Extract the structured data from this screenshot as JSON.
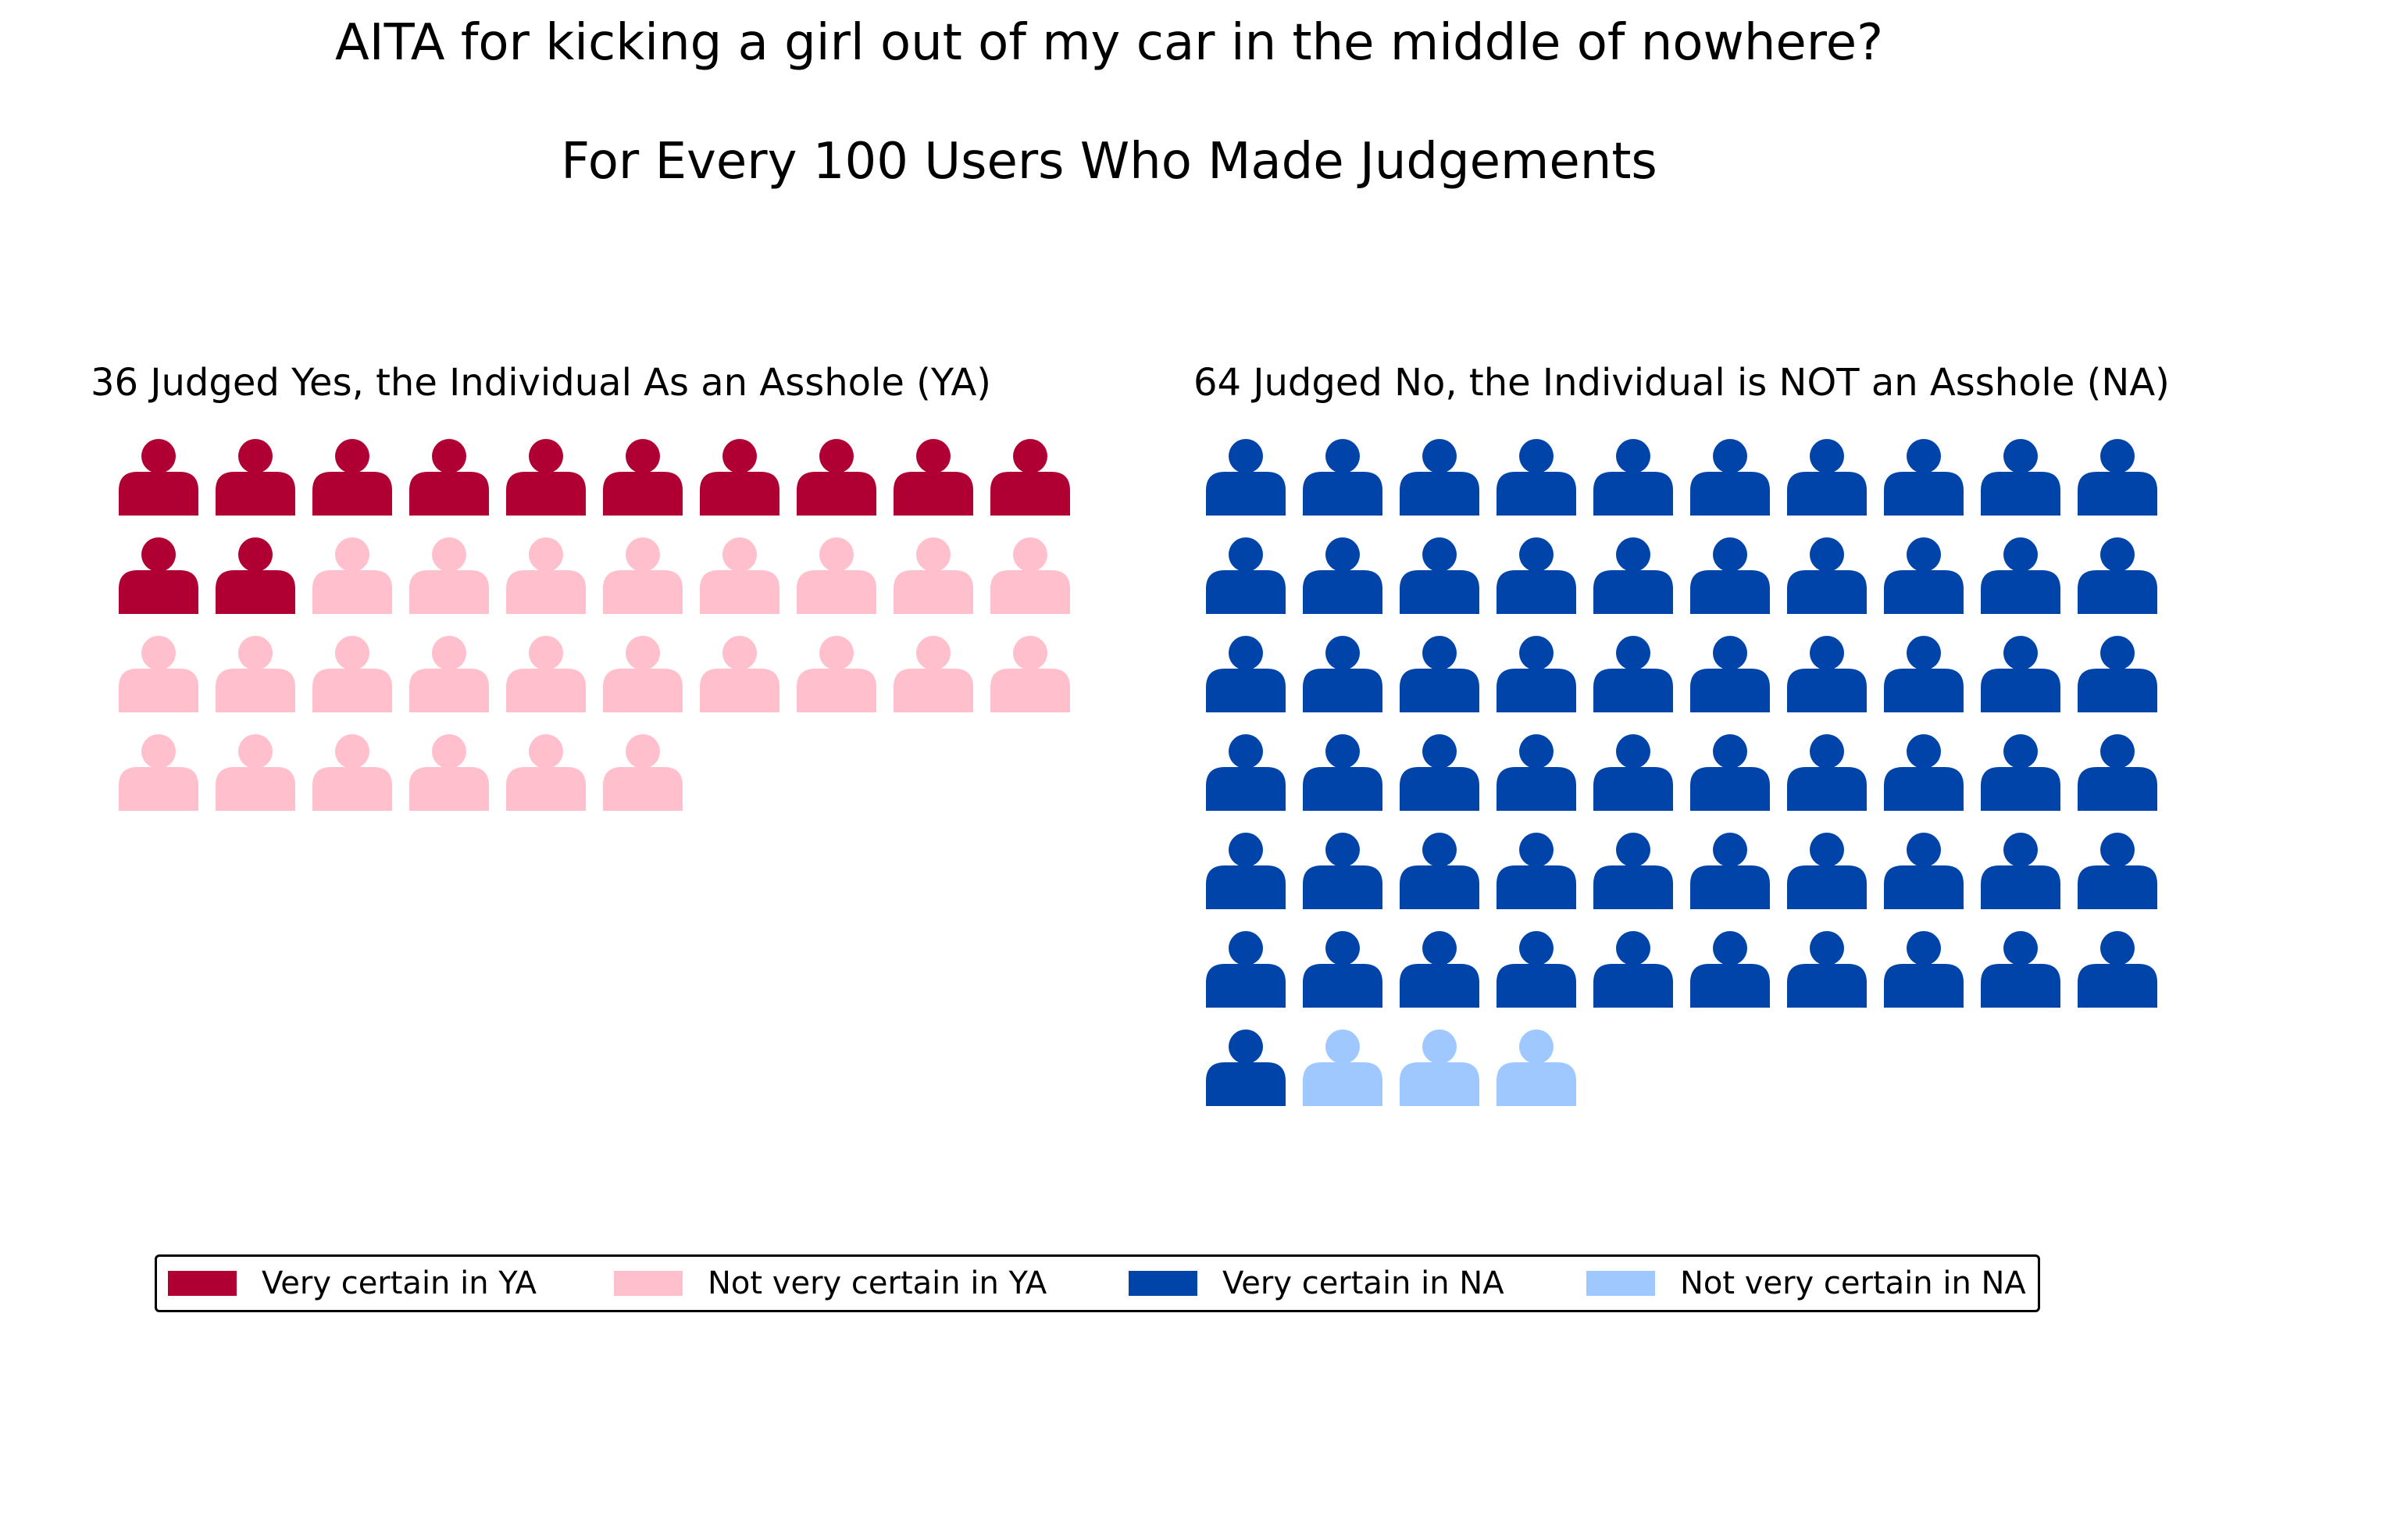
{
  "title": "AITA for kicking a girl out of my car in the middle of nowhere?",
  "subtitle": "For Every 100 Users Who Made Judgements",
  "chart_data": {
    "type": "waffle",
    "panels": [
      {
        "title": "36 Judged Yes, the Individual As an Asshole (YA)",
        "total": 36,
        "columns": 10,
        "segments": [
          {
            "name": "Very certain in YA",
            "count": 12,
            "color": "#b00033"
          },
          {
            "name": "Not very certain in YA",
            "count": 24,
            "color": "#ffbfcc"
          }
        ]
      },
      {
        "title": "64 Judged No, the Individual is NOT an Asshole (NA)",
        "total": 64,
        "columns": 10,
        "segments": [
          {
            "name": "Very certain in NA",
            "count": 61,
            "color": "#0044aa"
          },
          {
            "name": "Not very certain in NA",
            "count": 3,
            "color": "#9ec8ff"
          }
        ]
      }
    ],
    "icon": "person-icon",
    "legend": {
      "position": "bottom",
      "entries": [
        {
          "label": "Very certain in YA",
          "color": "#b00033"
        },
        {
          "label": "Not very certain in YA",
          "color": "#ffbfcc"
        },
        {
          "label": "Very certain in NA",
          "color": "#0044aa"
        },
        {
          "label": "Not very certain in NA",
          "color": "#9ec8ff"
        }
      ]
    }
  }
}
